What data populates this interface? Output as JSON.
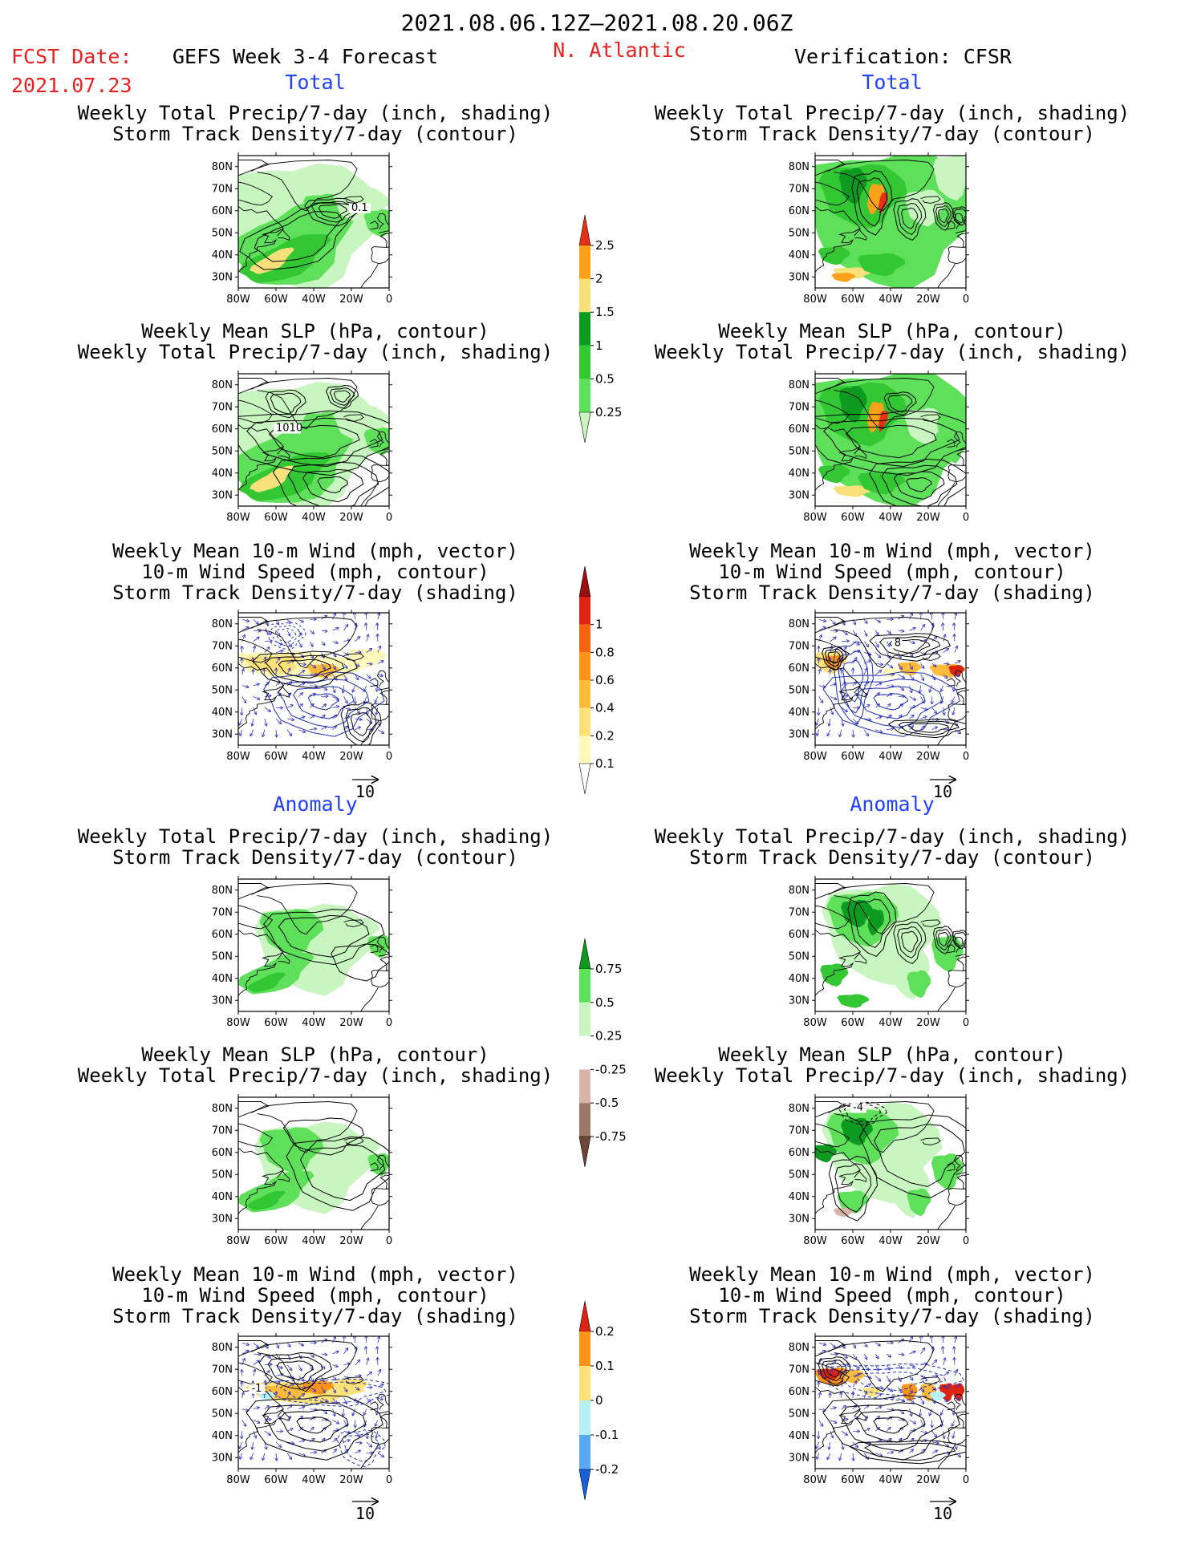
{
  "header": {
    "date_range": "2021.08.06.12Z–2021.08.20.06Z",
    "fcst_label": "FCST Date:",
    "fcst_date": "2021.07.23",
    "forecast_title": "GEFS Week 3-4 Forecast",
    "region": "N. Atlantic",
    "verification": "Verification: CFSR"
  },
  "sections": {
    "total_left": "Total",
    "total_right": "Total",
    "anomaly_left": "Anomaly",
    "anomaly_right": "Anomaly"
  },
  "panels": [
    {
      "id": "p1",
      "title1": "Weekly Total Precip/7-day (inch, shading)",
      "title2": "Storm Track Density/7-day (contour)",
      "title3": "",
      "label": "0.1"
    },
    {
      "id": "p2",
      "title1": "Weekly Total Precip/7-day (inch, shading)",
      "title2": "Storm Track Density/7-day (contour)",
      "title3": "",
      "label": ""
    },
    {
      "id": "p3",
      "title1": "Weekly Mean SLP (hPa, contour)",
      "title2": "Weekly Total Precip/7-day (inch, shading)",
      "title3": "",
      "label": "1010"
    },
    {
      "id": "p4",
      "title1": "Weekly Mean SLP (hPa, contour)",
      "title2": "Weekly Total Precip/7-day (inch, shading)",
      "title3": "",
      "label": ""
    },
    {
      "id": "p5",
      "title1": "Weekly Mean 10-m Wind (mph, vector)",
      "title2": "10-m Wind Speed (mph, contour)",
      "title3": "Storm Track Density/7-day (shading)",
      "label": ""
    },
    {
      "id": "p6",
      "title1": "Weekly Mean 10-m Wind (mph, vector)",
      "title2": "10-m Wind Speed (mph, contour)",
      "title3": "Storm Track Density/7-day (shading)",
      "label": "8"
    },
    {
      "id": "p7",
      "title1": "Weekly Total Precip/7-day (inch, shading)",
      "title2": "Storm Track Density/7-day (contour)",
      "title3": "",
      "label": ""
    },
    {
      "id": "p8",
      "title1": "Weekly Total Precip/7-day (inch, shading)",
      "title2": "Storm Track Density/7-day (contour)",
      "title3": "",
      "label": ""
    },
    {
      "id": "p9",
      "title1": "Weekly Mean SLP (hPa, contour)",
      "title2": "Weekly Total Precip/7-day (inch, shading)",
      "title3": "",
      "label": ""
    },
    {
      "id": "p10",
      "title1": "Weekly Mean SLP (hPa, contour)",
      "title2": "Weekly Total Precip/7-day (inch, shading)",
      "title3": "",
      "label": "-4"
    },
    {
      "id": "p11",
      "title1": "Weekly Mean 10-m Wind (mph, vector)",
      "title2": "10-m Wind Speed (mph, contour)",
      "title3": "Storm Track Density/7-day (shading)",
      "label": "-1"
    },
    {
      "id": "p12",
      "title1": "Weekly Mean 10-m Wind (mph, vector)",
      "title2": "10-m Wind Speed (mph, contour)",
      "title3": "Storm Track Density/7-day (shading)",
      "label": ""
    }
  ],
  "axes": {
    "lat_ticks": [
      "80N",
      "70N",
      "60N",
      "50N",
      "40N",
      "30N"
    ],
    "lon_ticks": [
      "80W",
      "60W",
      "40W",
      "20W",
      "0"
    ],
    "xlim": [
      -80,
      0
    ],
    "ylim": [
      25,
      85
    ]
  },
  "vector_ref": "10",
  "colorbars": [
    {
      "id": "cb1",
      "type": "precip_total",
      "levels": [
        "0.25",
        "0.5",
        "1",
        "1.5",
        "2",
        "2.5"
      ],
      "colors": [
        "#c8f5c0",
        "#5fe05a",
        "#33c833",
        "#0e9a20",
        "#f8e07a",
        "#fba21a",
        "#e83018"
      ]
    },
    {
      "id": "cb2",
      "type": "storm_density",
      "levels": [
        "0.1",
        "0.2",
        "0.4",
        "0.6",
        "0.8",
        "1"
      ],
      "colors": [
        "#ffffff",
        "#fff8b8",
        "#fde27a",
        "#fdbb3c",
        "#fb9418",
        "#f26410",
        "#dc2412",
        "#9a1010"
      ]
    },
    {
      "id": "cb3",
      "type": "precip_anomaly",
      "levels": [
        "-0.75",
        "-0.5",
        "-0.25",
        "0.25",
        "0.5",
        "0.75"
      ],
      "colors": [
        "#6e4638",
        "#a0786a",
        "#d8b4a8",
        "#ffffff",
        "#c8f5c0",
        "#5fe05a",
        "#0e9a20"
      ]
    },
    {
      "id": "cb4",
      "type": "density_anomaly",
      "levels": [
        "-0.2",
        "-0.1",
        "0",
        "0.1",
        "0.2"
      ],
      "colors": [
        "#1a5fe0",
        "#5aa8f0",
        "#b8f0f8",
        "#fde27a",
        "#fb9418",
        "#dc2412"
      ]
    }
  ],
  "chart_data": [
    {
      "type": "heatmap",
      "panel": "p1",
      "title": "Weekly Total Precip/7-day (inch, shading) / Storm Track Density/7-day (contour)",
      "section": "Total",
      "source": "GEFS Week 3-4 Forecast",
      "xlim": [
        -80,
        0
      ],
      "ylim": [
        25,
        85
      ],
      "contour_label": "0.1"
    },
    {
      "type": "heatmap",
      "panel": "p2",
      "title": "Weekly Total Precip/7-day (inch, shading) / Storm Track Density/7-day (contour)",
      "section": "Total",
      "source": "Verification: CFSR",
      "xlim": [
        -80,
        0
      ],
      "ylim": [
        25,
        85
      ]
    },
    {
      "type": "heatmap",
      "panel": "p3",
      "title": "Weekly Mean SLP (hPa, contour) / Weekly Total Precip/7-day (inch, shading)",
      "section": "Total",
      "source": "GEFS Week 3-4 Forecast",
      "xlim": [
        -80,
        0
      ],
      "ylim": [
        25,
        85
      ],
      "contour_label": "1010"
    },
    {
      "type": "heatmap",
      "panel": "p4",
      "title": "Weekly Mean SLP (hPa, contour) / Weekly Total Precip/7-day (inch, shading)",
      "section": "Total",
      "source": "Verification: CFSR",
      "xlim": [
        -80,
        0
      ],
      "ylim": [
        25,
        85
      ]
    },
    {
      "type": "heatmap",
      "panel": "p5",
      "title": "Weekly Mean 10-m Wind (mph, vector) / 10-m Wind Speed (mph, contour) / Storm Track Density/7-day (shading)",
      "section": "Total",
      "source": "GEFS Week 3-4 Forecast",
      "xlim": [
        -80,
        0
      ],
      "ylim": [
        25,
        85
      ],
      "vector_ref": 10
    },
    {
      "type": "heatmap",
      "panel": "p6",
      "title": "Weekly Mean 10-m Wind (mph, vector) / 10-m Wind Speed (mph, contour) / Storm Track Density/7-day (shading)",
      "section": "Total",
      "source": "Verification: CFSR",
      "xlim": [
        -80,
        0
      ],
      "ylim": [
        25,
        85
      ],
      "vector_ref": 10
    },
    {
      "type": "heatmap",
      "panel": "p7",
      "title": "Weekly Total Precip/7-day (inch, shading) / Storm Track Density/7-day (contour)",
      "section": "Anomaly",
      "source": "GEFS Week 3-4 Forecast",
      "xlim": [
        -80,
        0
      ],
      "ylim": [
        25,
        85
      ]
    },
    {
      "type": "heatmap",
      "panel": "p8",
      "title": "Weekly Total Precip/7-day (inch, shading) / Storm Track Density/7-day (contour)",
      "section": "Anomaly",
      "source": "Verification: CFSR",
      "xlim": [
        -80,
        0
      ],
      "ylim": [
        25,
        85
      ]
    },
    {
      "type": "heatmap",
      "panel": "p9",
      "title": "Weekly Mean SLP (hPa, contour) / Weekly Total Precip/7-day (inch, shading)",
      "section": "Anomaly",
      "source": "GEFS Week 3-4 Forecast",
      "xlim": [
        -80,
        0
      ],
      "ylim": [
        25,
        85
      ]
    },
    {
      "type": "heatmap",
      "panel": "p10",
      "title": "Weekly Mean SLP (hPa, contour) / Weekly Total Precip/7-day (inch, shading)",
      "section": "Anomaly",
      "source": "Verification: CFSR",
      "xlim": [
        -80,
        0
      ],
      "ylim": [
        25,
        85
      ],
      "contour_label": "-4"
    },
    {
      "type": "heatmap",
      "panel": "p11",
      "title": "Weekly Mean 10-m Wind (mph, vector) / 10-m Wind Speed (mph, contour) / Storm Track Density/7-day (shading)",
      "section": "Anomaly",
      "source": "GEFS Week 3-4 Forecast",
      "xlim": [
        -80,
        0
      ],
      "ylim": [
        25,
        85
      ],
      "vector_ref": 10
    },
    {
      "type": "heatmap",
      "panel": "p12",
      "title": "Weekly Mean 10-m Wind (mph, vector) / 10-m Wind Speed (mph, contour) / Storm Track Density/7-day (shading)",
      "section": "Anomaly",
      "source": "Verification: CFSR",
      "xlim": [
        -80,
        0
      ],
      "ylim": [
        25,
        85
      ],
      "vector_ref": 10
    }
  ]
}
